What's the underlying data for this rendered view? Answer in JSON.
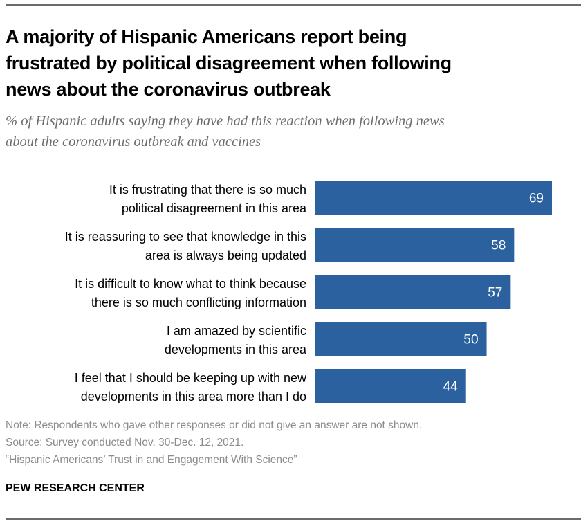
{
  "header": {
    "title": "A majority of Hispanic Americans report being frustrated by political disagreement when following news about the coronavirus outbreak",
    "title_lines": [
      "A majority of Hispanic Americans report being",
      "frustrated by political disagreement when following",
      "news about the coronavirus outbreak"
    ],
    "subtitle_lines": [
      "% of Hispanic adults saying they have had this reaction when following news",
      "about the coronavirus outbreak and vaccines"
    ]
  },
  "chart_data": {
    "type": "bar",
    "orientation": "horizontal",
    "title": "A majority of Hispanic Americans report being frustrated by political disagreement when following news about the coronavirus outbreak",
    "subtitle": "% of Hispanic adults saying they have had this reaction when following news about the coronavirus outbreak and vaccines",
    "categories": [
      "It is frustrating that there is so much political disagreement in this area",
      "It is reassuring to see that knowledge in this area is always being updated",
      "It is difficult to know what to think because there is so much conflicting information",
      "I am amazed by scientific developments in this area",
      "I feel that I should be keeping up with new developments in this area more than I do"
    ],
    "category_lines": [
      [
        "It is frustrating that there is so much",
        "political disagreement in this area"
      ],
      [
        "It is reassuring to see that knowledge in this",
        "area is always being updated"
      ],
      [
        "It is difficult to know what to think because",
        "there is so much conflicting information"
      ],
      [
        "I am amazed by scientific",
        "developments in this area"
      ],
      [
        "I feel that I should be keeping up with new",
        "developments in this area more than I do"
      ]
    ],
    "values": [
      69,
      58,
      57,
      50,
      44
    ],
    "data_labels": [
      "69",
      "58",
      "57",
      "50",
      "44"
    ],
    "xlabel": "",
    "ylabel": "",
    "xlim": [
      0,
      69
    ],
    "grid": false,
    "legend": "none",
    "bar_color": "#2a619e",
    "label_color": "#ffffff"
  },
  "footer": {
    "note": "Note: Respondents who gave other responses or did not give an answer are not shown.",
    "source": "Source: Survey conducted Nov. 30-Dec. 12, 2021.",
    "report": "“Hispanic Americans’ Trust in and Engagement With Science”",
    "organization": "PEW RESEARCH CENTER"
  }
}
